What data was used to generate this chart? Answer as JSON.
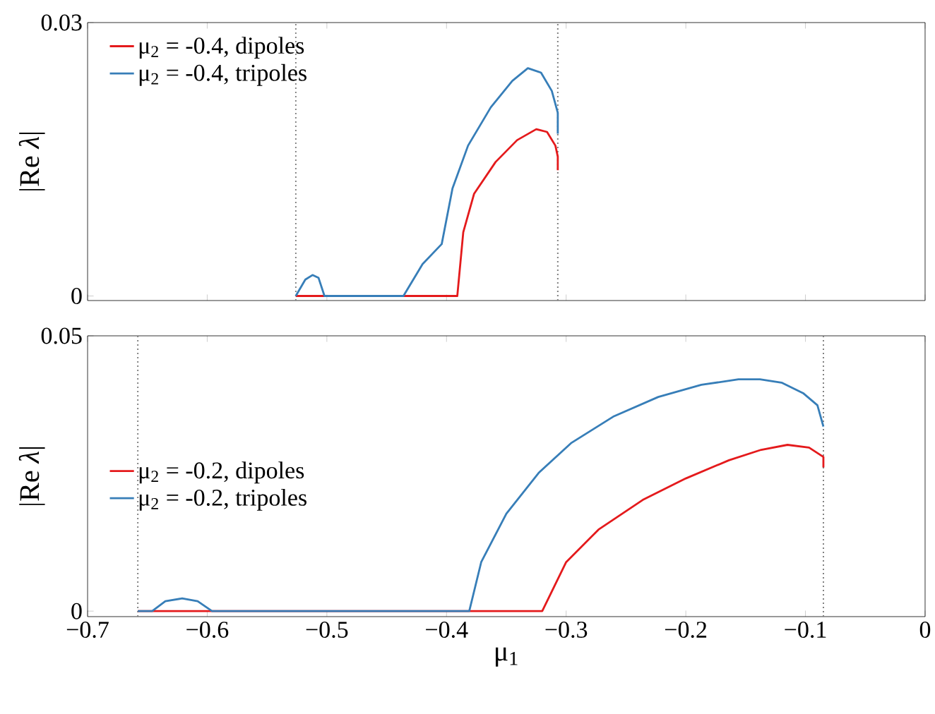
{
  "chart_data": [
    {
      "type": "line",
      "ylabel": "|Re *λ*|",
      "xlim": [
        -0.7,
        0
      ],
      "ylim": [
        -0.0005,
        0.03
      ],
      "tick_labels": "y",
      "legend": "top left",
      "xticks": [
        -0.7,
        -0.6,
        -0.5,
        -0.4,
        -0.3,
        -0.2,
        -0.1,
        0
      ],
      "yticks": [
        0,
        0.03
      ],
      "ref_lines": [
        {
          "axis": "x",
          "value": -0.526,
          "color": "#808080",
          "line_style": "dotted"
        },
        {
          "axis": "x",
          "value": -0.307,
          "color": "#808080",
          "line_style": "dotted"
        }
      ],
      "series": [
        {
          "name": "μ$_{2}$ = -0.4, dipoles",
          "color": "#e41a1c",
          "x": [
            -0.526,
            -0.391,
            -0.386,
            -0.377,
            -0.359,
            -0.341,
            -0.325,
            -0.316,
            -0.309,
            -0.307,
            -0.307
          ],
          "values": [
            0,
            0,
            0.007,
            0.0112,
            0.0147,
            0.0171,
            0.0183,
            0.018,
            0.0165,
            0.0153,
            0.0138
          ]
        },
        {
          "name": "μ$_{2}$ = -0.4, tripoles",
          "color": "#377eb8",
          "x": [
            -0.526,
            -0.518,
            -0.512,
            -0.507,
            -0.502,
            -0.436,
            -0.42,
            -0.404,
            -0.395,
            -0.382,
            -0.363,
            -0.345,
            -0.332,
            -0.321,
            -0.312,
            -0.307,
            -0.307
          ],
          "values": [
            0,
            0.0018,
            0.0023,
            0.002,
            0,
            0,
            0.0035,
            0.0057,
            0.0118,
            0.0165,
            0.0207,
            0.0236,
            0.025,
            0.0245,
            0.0225,
            0.0201,
            0.0178
          ]
        }
      ]
    },
    {
      "type": "line",
      "ylabel": "|Re *λ*|",
      "xlabel": "μ$_{1}$",
      "xlim": [
        -0.7,
        0
      ],
      "ylim": [
        -0.001,
        0.05
      ],
      "legend": "left",
      "xticks": [
        {
          "value": -0.7,
          "label": "−0.7"
        },
        {
          "value": -0.6,
          "label": "−0.6"
        },
        {
          "value": -0.5,
          "label": "−0.5"
        },
        {
          "value": -0.4,
          "label": "−0.4"
        },
        {
          "value": -0.3,
          "label": "−0.3"
        },
        {
          "value": -0.2,
          "label": "−0.2"
        },
        {
          "value": -0.1,
          "label": "−0.1"
        },
        0
      ],
      "yticks": [
        0,
        0.05
      ],
      "ref_lines": [
        {
          "axis": "x",
          "value": -0.658,
          "color": "#808080",
          "line_style": "dotted"
        },
        {
          "axis": "x",
          "value": -0.085,
          "color": "#808080",
          "line_style": "dotted"
        }
      ],
      "series": [
        {
          "name": "μ$_{2}$ = -0.2, dipoles",
          "color": "#e41a1c",
          "x": [
            -0.658,
            -0.32,
            -0.3,
            -0.273,
            -0.236,
            -0.2,
            -0.164,
            -0.137,
            -0.115,
            -0.097,
            -0.085,
            -0.085
          ],
          "values": [
            0,
            0,
            0.0089,
            0.0148,
            0.0202,
            0.0241,
            0.0274,
            0.0293,
            0.0302,
            0.0297,
            0.028,
            0.0261
          ]
        },
        {
          "name": "μ$_{2}$ = -0.2, tripoles",
          "color": "#377eb8",
          "x": [
            -0.658,
            -0.646,
            -0.635,
            -0.621,
            -0.608,
            -0.596,
            -0.381,
            -0.371,
            -0.35,
            -0.323,
            -0.296,
            -0.26,
            -0.223,
            -0.187,
            -0.156,
            -0.138,
            -0.12,
            -0.102,
            -0.09,
            -0.085
          ],
          "values": [
            0,
            0,
            0.0018,
            0.0023,
            0.0018,
            0,
            0,
            0.0089,
            0.0177,
            0.0251,
            0.0305,
            0.0354,
            0.0389,
            0.0411,
            0.0421,
            0.0421,
            0.0415,
            0.0396,
            0.0374,
            0.0335
          ]
        }
      ]
    }
  ]
}
